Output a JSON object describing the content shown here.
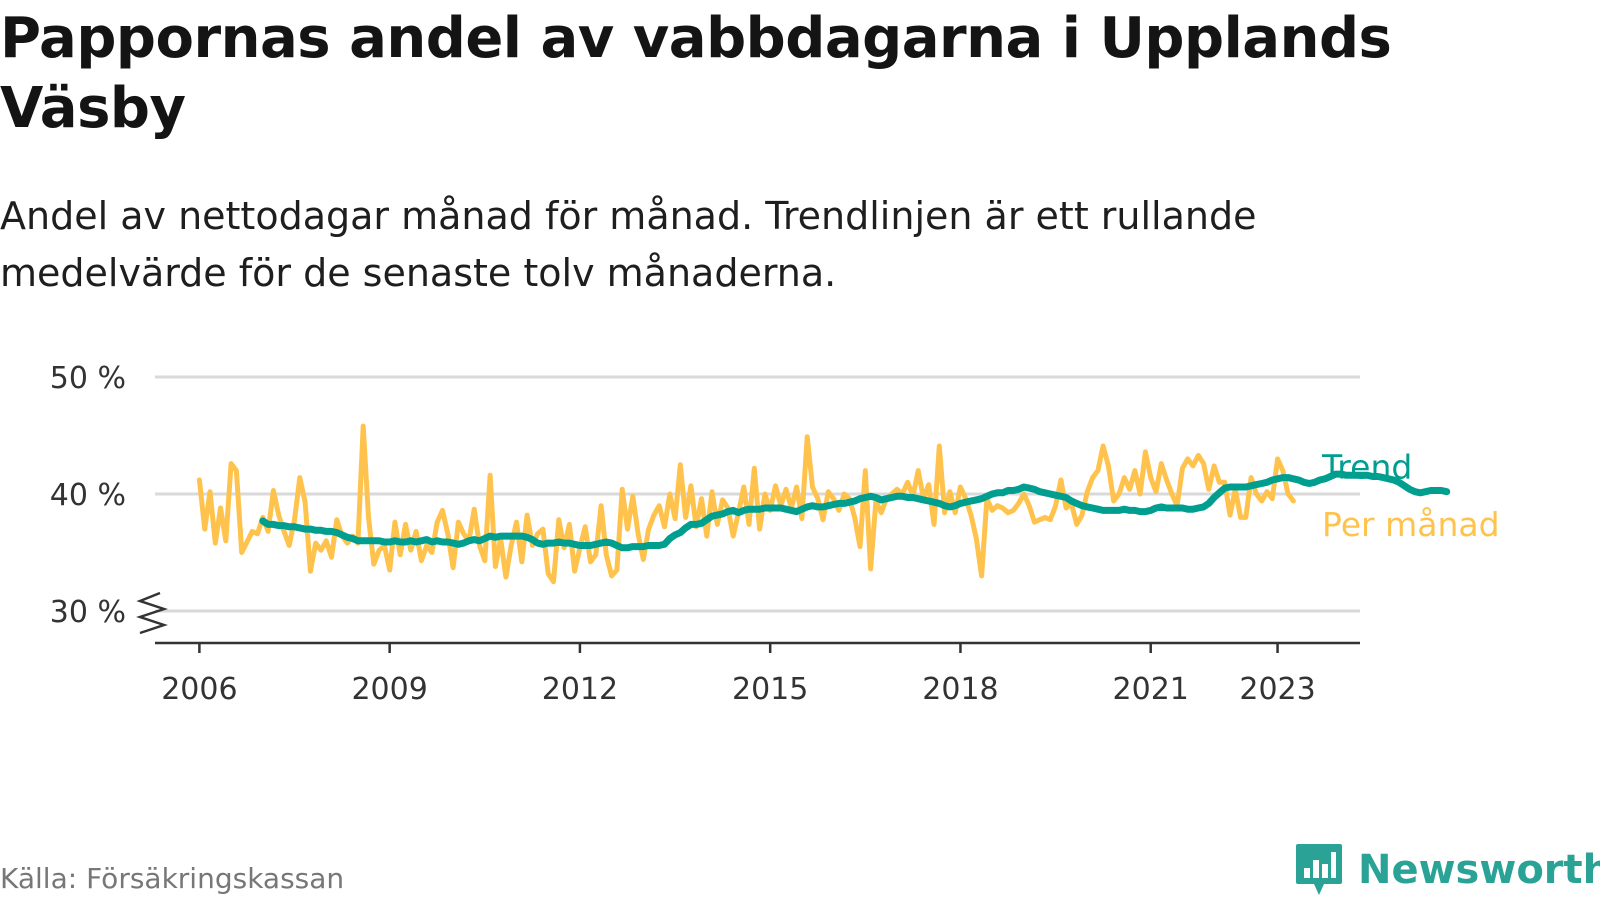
{
  "title": "Pappornas andel av vabbdagarna i Upplands Väsby",
  "subtitle": "Andel av nettodagar månad för månad. Trendlinjen är ett rullande medelvärde för de senaste tolv månaderna.",
  "source": "Källa: Försäkringskassan",
  "brand": {
    "name": "Newsworthy",
    "logo_icon": "bar-chart-icon"
  },
  "colors": {
    "trend": "#009e8f",
    "monthly": "#ffc34d",
    "grid": "#d9d9d9",
    "axis": "#333333",
    "brand": "#2aa396"
  },
  "chart_data": {
    "type": "line",
    "title": "Pappornas andel av vabbdagarna i Upplands Väsby",
    "ylim": [
      30,
      50
    ],
    "y_ticks": [
      30,
      40,
      50
    ],
    "y_tick_labels": [
      "30 %",
      "40 %",
      "50 %"
    ],
    "y_axis_break": true,
    "x_ticks": [
      2006,
      2009,
      2012,
      2015,
      2018,
      2021,
      2023
    ],
    "x_tick_labels": [
      "2006",
      "2009",
      "2012",
      "2015",
      "2018",
      "2021",
      "2023"
    ],
    "grid": true,
    "legend_placement": "right-end-labels",
    "series": [
      {
        "name": "Per månad",
        "start": "2006-01",
        "frequency": "monthly",
        "values": [
          41.2,
          37.0,
          40.2,
          35.8,
          38.8,
          36.0,
          42.6,
          42.0,
          35.0,
          35.9,
          36.8,
          36.6,
          38.0,
          36.8,
          40.3,
          38.2,
          36.8,
          35.6,
          37.8,
          41.4,
          39.3,
          33.4,
          35.8,
          35.2,
          36.0,
          34.6,
          37.8,
          36.4,
          35.8,
          36.4,
          35.8,
          45.8,
          38.0,
          34.0,
          35.2,
          35.6,
          33.5,
          37.6,
          34.8,
          37.4,
          35.2,
          36.8,
          34.3,
          35.6,
          35.0,
          37.6,
          38.6,
          36.6,
          33.7,
          37.6,
          36.6,
          36.0,
          38.7,
          35.6,
          34.3,
          41.6,
          33.8,
          36.2,
          32.9,
          35.6,
          37.6,
          34.2,
          38.2,
          35.6,
          36.6,
          37.0,
          33.2,
          32.5,
          37.8,
          35.4,
          37.4,
          33.4,
          35.4,
          37.2,
          34.2,
          34.8,
          39.0,
          34.8,
          33.0,
          33.5,
          40.4,
          37.0,
          39.8,
          36.6,
          34.4,
          37.0,
          38.2,
          39.0,
          37.2,
          40.0,
          37.9,
          42.5,
          38.0,
          40.7,
          37.2,
          39.6,
          36.4,
          40.2,
          37.4,
          39.5,
          38.8,
          36.4,
          38.4,
          40.6,
          37.4,
          42.2,
          37.0,
          40.0,
          38.6,
          40.7,
          39.0,
          40.4,
          38.8,
          40.6,
          37.9,
          44.9,
          40.6,
          39.6,
          37.8,
          40.2,
          39.6,
          38.6,
          40.0,
          39.6,
          38.0,
          35.5,
          42.0,
          33.6,
          39.4,
          38.4,
          39.6,
          40.0,
          40.4,
          40.0,
          41.0,
          39.8,
          42.0,
          39.6,
          40.8,
          37.4,
          44.1,
          38.4,
          40.2,
          38.4,
          40.6,
          39.6,
          38.2,
          36.2,
          33.0,
          39.6,
          38.6,
          39.0,
          38.8,
          38.4,
          38.6,
          39.2,
          40.0,
          39.0,
          37.6,
          37.8,
          38.0,
          37.8,
          39.0,
          41.2,
          38.8,
          39.2,
          37.4,
          38.2,
          40.2,
          41.4,
          42.0,
          44.1,
          42.4,
          39.4,
          40.0,
          41.4,
          40.4,
          42.0,
          40.0,
          43.6,
          41.4,
          40.2,
          42.6,
          41.2,
          40.0,
          39.0,
          42.2,
          43.0,
          42.4,
          43.3,
          42.6,
          40.4,
          42.4,
          41.0,
          41.0,
          38.2,
          40.4,
          38.0,
          38.0,
          41.4,
          40.0,
          39.4,
          40.2,
          39.6,
          43.0,
          42.0,
          40.0,
          39.4
        ]
      },
      {
        "name": "Trend",
        "start": "2007-01",
        "frequency": "monthly",
        "values": [
          37.7,
          37.4,
          37.4,
          37.3,
          37.3,
          37.2,
          37.2,
          37.1,
          37.0,
          37.0,
          36.9,
          36.9,
          36.8,
          36.8,
          36.7,
          36.5,
          36.3,
          36.2,
          36.0,
          36.0,
          36.0,
          36.0,
          36.0,
          35.9,
          35.9,
          36.0,
          35.9,
          35.9,
          36.0,
          35.9,
          36.0,
          36.1,
          35.9,
          36.0,
          35.9,
          35.9,
          35.8,
          35.7,
          35.8,
          36.0,
          36.1,
          36.0,
          36.2,
          36.4,
          36.3,
          36.4,
          36.4,
          36.4,
          36.4,
          36.4,
          36.3,
          36.1,
          35.8,
          35.7,
          35.8,
          35.8,
          35.9,
          35.8,
          35.8,
          35.7,
          35.6,
          35.6,
          35.6,
          35.7,
          35.8,
          35.9,
          35.8,
          35.6,
          35.4,
          35.4,
          35.5,
          35.5,
          35.5,
          35.6,
          35.6,
          35.6,
          35.7,
          36.2,
          36.5,
          36.7,
          37.1,
          37.4,
          37.4,
          37.5,
          37.8,
          38.1,
          38.2,
          38.3,
          38.5,
          38.6,
          38.4,
          38.6,
          38.7,
          38.7,
          38.7,
          38.8,
          38.8,
          38.8,
          38.8,
          38.7,
          38.6,
          38.5,
          38.7,
          38.9,
          39.0,
          38.9,
          38.9,
          39.0,
          39.1,
          39.2,
          39.2,
          39.3,
          39.4,
          39.6,
          39.7,
          39.8,
          39.7,
          39.5,
          39.6,
          39.7,
          39.8,
          39.8,
          39.7,
          39.7,
          39.6,
          39.5,
          39.4,
          39.3,
          39.2,
          39.0,
          38.9,
          39.0,
          39.2,
          39.3,
          39.4,
          39.5,
          39.6,
          39.8,
          40.0,
          40.1,
          40.1,
          40.3,
          40.3,
          40.4,
          40.6,
          40.5,
          40.4,
          40.2,
          40.1,
          40.0,
          39.9,
          39.8,
          39.7,
          39.4,
          39.2,
          39.0,
          38.9,
          38.8,
          38.7,
          38.6,
          38.6,
          38.6,
          38.6,
          38.7,
          38.6,
          38.6,
          38.5,
          38.5,
          38.6,
          38.8,
          38.9,
          38.8,
          38.8,
          38.8,
          38.8,
          38.7,
          38.7,
          38.8,
          38.9,
          39.2,
          39.7,
          40.1,
          40.5,
          40.6,
          40.6,
          40.6,
          40.6,
          40.7,
          40.8,
          40.9,
          41.0,
          41.2,
          41.3,
          41.4,
          41.4,
          41.3,
          41.2,
          41.0,
          40.9,
          41.0,
          41.2,
          41.3,
          41.5,
          41.7,
          41.7,
          41.6,
          41.6,
          41.6,
          41.6,
          41.6,
          41.5,
          41.5,
          41.4,
          41.3,
          41.2,
          41.0,
          40.7,
          40.4,
          40.2,
          40.1,
          40.2,
          40.3,
          40.3,
          40.3,
          40.2
        ]
      }
    ]
  }
}
